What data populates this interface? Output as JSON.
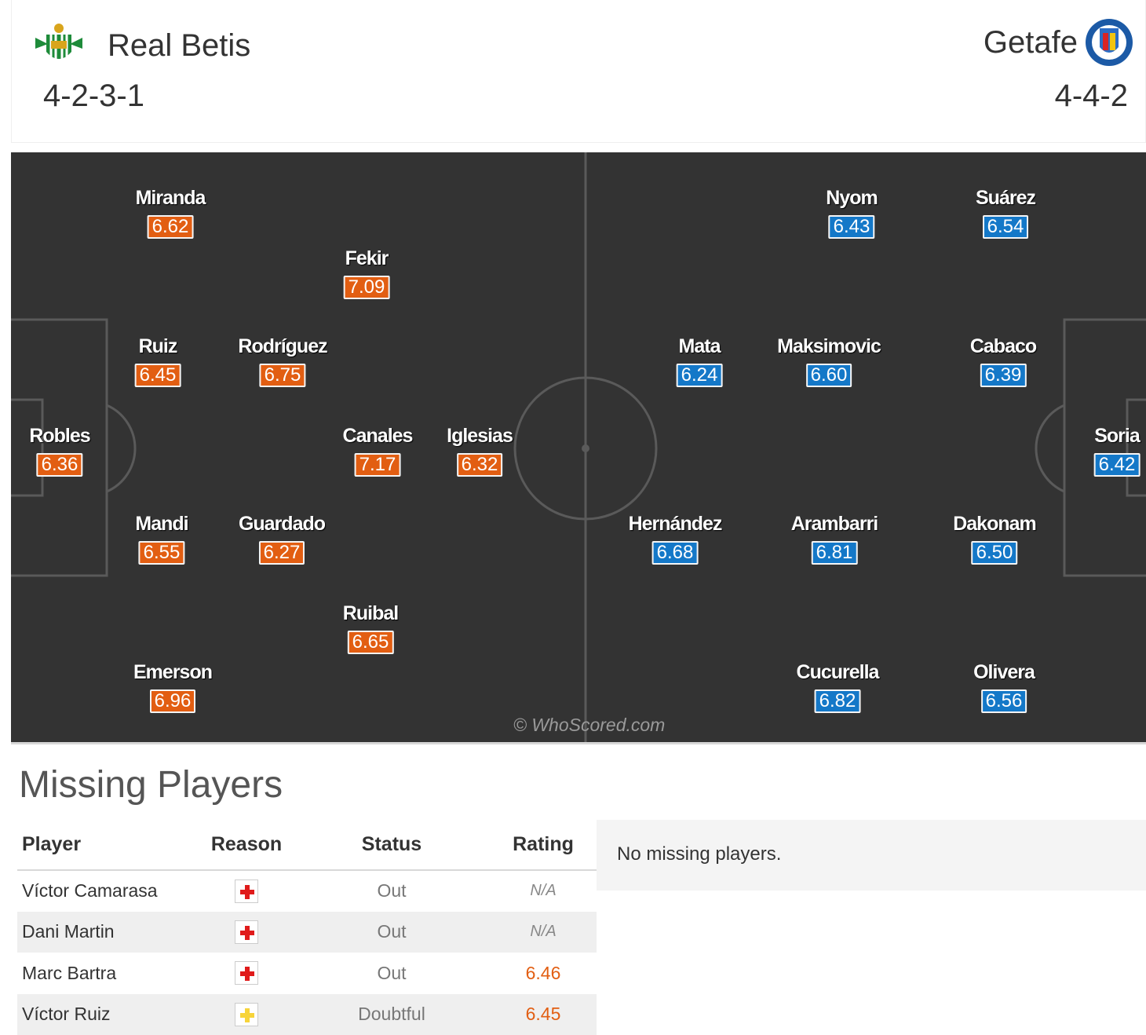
{
  "home": {
    "name": "Real Betis",
    "formation": "4-2-3-1",
    "crest_icon": "real-betis-crest",
    "color": "#e25e12"
  },
  "away": {
    "name": "Getafe",
    "formation": "4-4-2",
    "crest_icon": "getafe-crest",
    "color": "#1478c8"
  },
  "lineup": {
    "home_players": [
      {
        "name": "Miranda",
        "rating": "6.62"
      },
      {
        "name": "Fekir",
        "rating": "7.09"
      },
      {
        "name": "Ruiz",
        "rating": "6.45"
      },
      {
        "name": "Rodríguez",
        "rating": "6.75"
      },
      {
        "name": "Robles",
        "rating": "6.36"
      },
      {
        "name": "Canales",
        "rating": "7.17"
      },
      {
        "name": "Iglesias",
        "rating": "6.32"
      },
      {
        "name": "Mandi",
        "rating": "6.55"
      },
      {
        "name": "Guardado",
        "rating": "6.27"
      },
      {
        "name": "Ruibal",
        "rating": "6.65"
      },
      {
        "name": "Emerson",
        "rating": "6.96"
      }
    ],
    "away_players": [
      {
        "name": "Nyom",
        "rating": "6.43"
      },
      {
        "name": "Suárez",
        "rating": "6.54"
      },
      {
        "name": "Mata",
        "rating": "6.24"
      },
      {
        "name": "Maksimovic",
        "rating": "6.60"
      },
      {
        "name": "Cabaco",
        "rating": "6.39"
      },
      {
        "name": "Soria",
        "rating": "6.42"
      },
      {
        "name": "Hernández",
        "rating": "6.68"
      },
      {
        "name": "Arambarri",
        "rating": "6.81"
      },
      {
        "name": "Dakonam",
        "rating": "6.50"
      },
      {
        "name": "Cucurella",
        "rating": "6.82"
      },
      {
        "name": "Olivera",
        "rating": "6.56"
      }
    ],
    "watermark": "© WhoScored.com"
  },
  "missing": {
    "title": "Missing Players",
    "headers": {
      "player": "Player",
      "reason": "Reason",
      "status": "Status",
      "rating": "Rating"
    },
    "rows": [
      {
        "player": "Víctor Camarasa",
        "reason_icon": "injury-red-cross-icon",
        "status": "Out",
        "rating": "N/A"
      },
      {
        "player": "Dani Martin",
        "reason_icon": "injury-red-cross-icon",
        "status": "Out",
        "rating": "N/A"
      },
      {
        "player": "Marc Bartra",
        "reason_icon": "injury-red-cross-icon",
        "status": "Out",
        "rating": "6.46"
      },
      {
        "player": "Víctor Ruiz",
        "reason_icon": "doubtful-yellow-cross-icon",
        "status": "Doubtful",
        "rating": "6.45"
      }
    ],
    "away_message": "No missing players.",
    "colors": {
      "out": "#e01b1b",
      "doubtful": "#f7d43a"
    }
  }
}
